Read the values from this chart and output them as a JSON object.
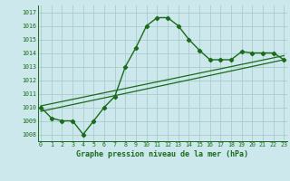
{
  "title": "Graphe pression niveau de la mer (hPa)",
  "background_color": "#cce8ec",
  "grid_color": "#aacccc",
  "line_color": "#1a6b1a",
  "series1_x": [
    0,
    1,
    2,
    3,
    4,
    5,
    6,
    7,
    8,
    9,
    10,
    11,
    12,
    13,
    14,
    15,
    16,
    17,
    18,
    19,
    20,
    21,
    22,
    23
  ],
  "series1_y": [
    1010.0,
    1009.2,
    1009.0,
    1009.0,
    1008.0,
    1009.0,
    1010.0,
    1010.8,
    1013.0,
    1014.4,
    1016.0,
    1016.6,
    1016.6,
    1016.0,
    1015.0,
    1014.2,
    1013.5,
    1013.5,
    1013.5,
    1014.1,
    1014.0,
    1014.0,
    1014.0,
    1013.5
  ],
  "series2_x": [
    0,
    23
  ],
  "series2_y": [
    1009.7,
    1013.5
  ],
  "series3_x": [
    0,
    23
  ],
  "series3_y": [
    1010.1,
    1013.8
  ],
  "ylim_min": 1007.5,
  "ylim_max": 1017.5,
  "xlim_min": -0.3,
  "xlim_max": 23.3,
  "yticks": [
    1008,
    1009,
    1010,
    1011,
    1012,
    1013,
    1014,
    1015,
    1016,
    1017
  ],
  "xticks": [
    0,
    1,
    2,
    3,
    4,
    5,
    6,
    7,
    8,
    9,
    10,
    11,
    12,
    13,
    14,
    15,
    16,
    17,
    18,
    19,
    20,
    21,
    22,
    23
  ]
}
